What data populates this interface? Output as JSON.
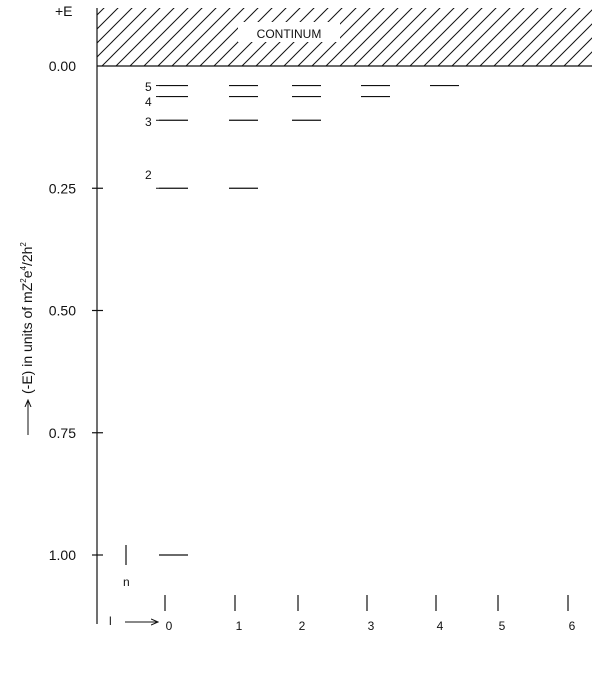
{
  "diagram": {
    "top_label": "+E",
    "continuum_label": "CONTINUM",
    "y_axis_label_prefix": "(-E) in units of mZ",
    "y_axis_label_sup1": "2",
    "y_axis_label_mid1": "e",
    "y_axis_label_sup2": "4",
    "y_axis_label_mid2": "/2h",
    "y_axis_label_sup3": "2",
    "y_ticks": [
      "0.00",
      "0.25",
      "0.50",
      "0.75",
      "1.00"
    ],
    "n_label": "n",
    "l_label": "l",
    "l_values": [
      "0",
      "1",
      "2",
      "3",
      "4",
      "5",
      "6"
    ],
    "level_labels": [
      "5",
      "4",
      "3",
      "2"
    ],
    "colors": {
      "ink": "#111111",
      "background": "#ffffff"
    }
  },
  "chart_data": {
    "type": "energy-level diagram",
    "title": "",
    "ylabel": "(-E) in units of mZ²e⁴/2h²",
    "xlabel": "l",
    "ylim": [
      0,
      1.0
    ],
    "levels": [
      {
        "n": 1,
        "energy": 1.0,
        "l": [
          0
        ]
      },
      {
        "n": 2,
        "energy": 0.25,
        "l": [
          0,
          1
        ]
      },
      {
        "n": 3,
        "energy": 0.111,
        "l": [
          0,
          1,
          2
        ]
      },
      {
        "n": 4,
        "energy": 0.0625,
        "l": [
          0,
          1,
          2,
          3
        ]
      },
      {
        "n": 5,
        "energy": 0.04,
        "l": [
          0,
          1,
          2,
          3,
          4
        ]
      }
    ]
  }
}
